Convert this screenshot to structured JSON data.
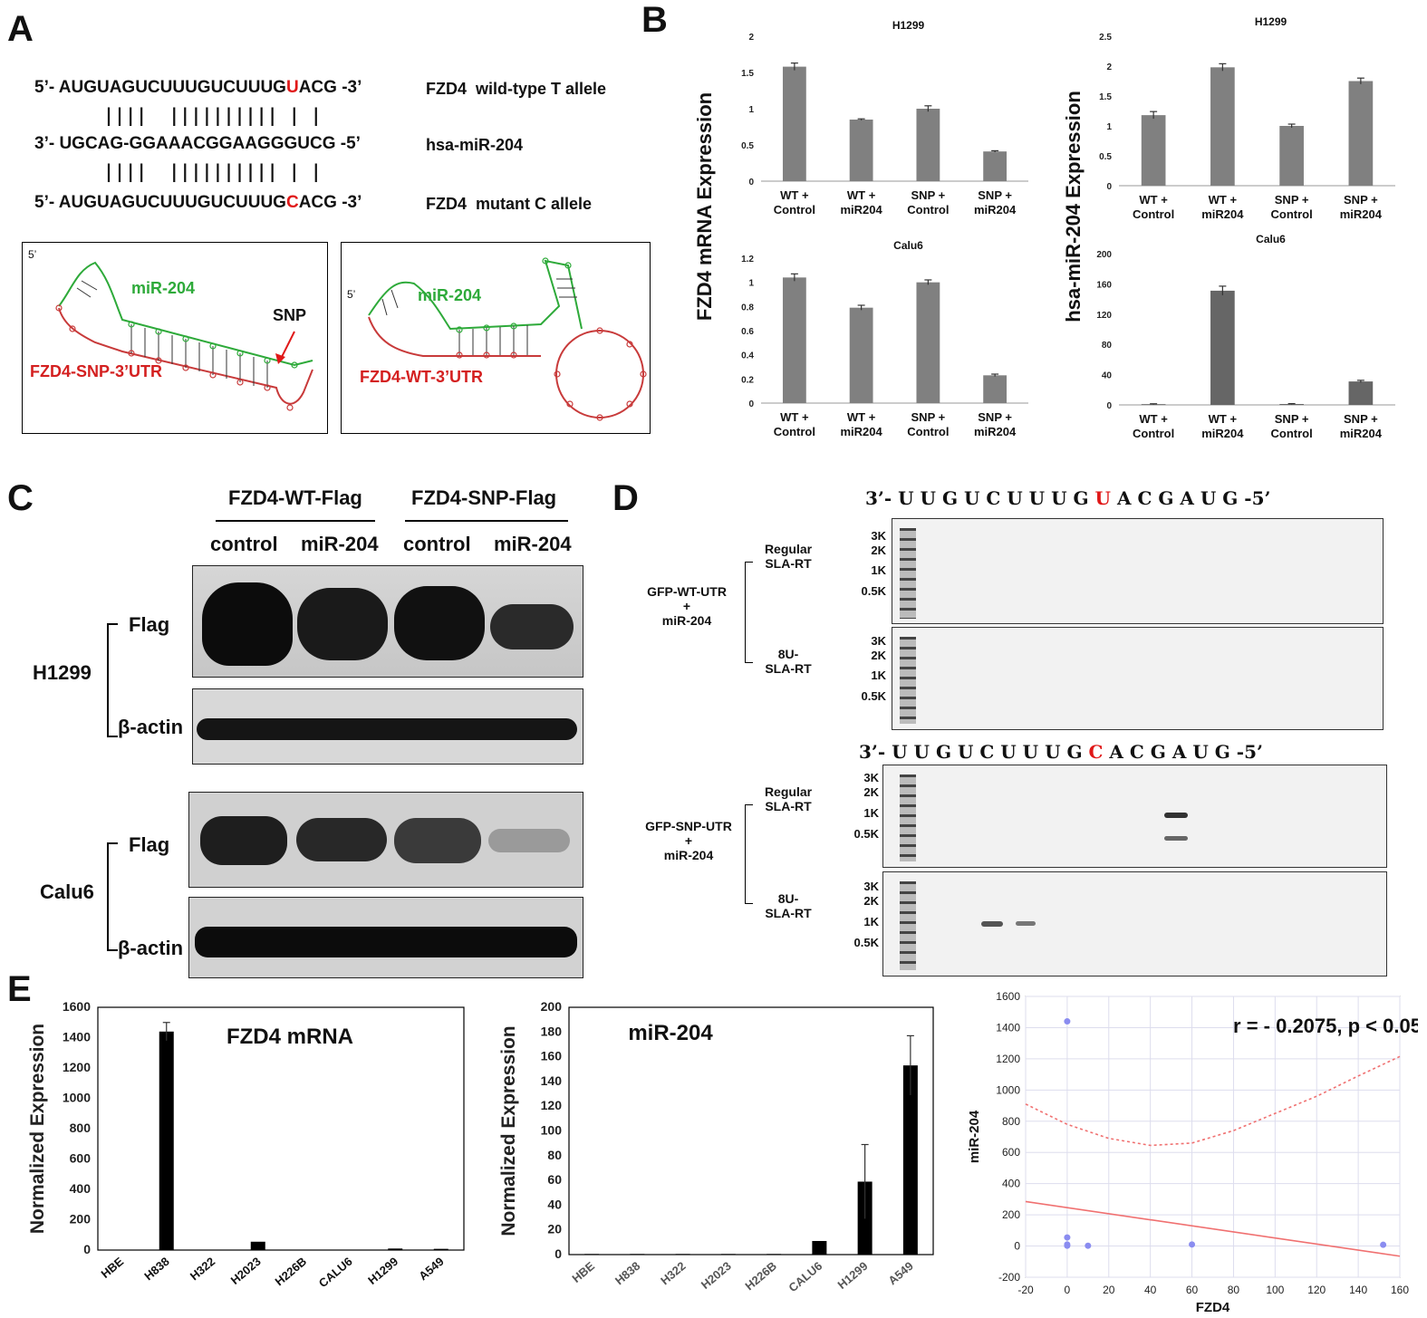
{
  "panels": {
    "a": "A",
    "b": "B",
    "c": "C",
    "d": "D",
    "e": "E"
  },
  "panel_a": {
    "row1": {
      "prefix": "5’- ",
      "seq_start": "AUGUAGUCUUUGUCUUUG",
      "snp": "U",
      "seq_end": "ACG",
      "suffix": " -3’",
      "label": "FZD4  wild-type T allele"
    },
    "pairs1": "||||  |||||||||| | |",
    "row2": {
      "seq": "3’- UGCAG-GGAAACGGAAGGGUCG -5’",
      "label": "hsa-miR-204"
    },
    "pairs2": "||||  |||||||||| | |",
    "row3": {
      "prefix": "5’- ",
      "seq_start": "AUGUAGUCUUUGUCUUUG",
      "snp": "C",
      "seq_end": "ACG",
      "suffix": " -3’",
      "label": "FZD4  mutant C allele"
    },
    "struct_left": {
      "five": "5’",
      "mir": "miR-204",
      "snp": "SNP",
      "utr": "FZD4-SNP-3’UTR"
    },
    "struct_right": {
      "five": "5’",
      "mir": "miR-204",
      "utr": "FZD4-WT-3’UTR"
    },
    "colors": {
      "mir": "#2eaa3a",
      "utr": "#d42020",
      "snp": "#e01818"
    }
  },
  "panel_b": {
    "ylabel_left": "FZD4 mRNA Expression",
    "ylabel_right": "hsa-miR-204 Expression"
  },
  "chart_data": [
    {
      "type": "bar",
      "title": "H1299",
      "categories": [
        "WT + Control",
        "WT + miR204",
        "SNP + Control",
        "SNP + miR204"
      ],
      "values": [
        1.58,
        0.85,
        1.0,
        0.41
      ],
      "errors": [
        0.05,
        0.01,
        0.04,
        0.01
      ],
      "ylim": [
        0,
        2
      ],
      "yticks": [
        0,
        0.5,
        1,
        1.5,
        2
      ],
      "ytick_labels": [
        "0",
        "0.5",
        "1",
        "1.5",
        "2"
      ],
      "ylabel": "FZD4 mRNA Expression",
      "color": "#808080"
    },
    {
      "type": "bar",
      "title": "H1299",
      "categories": [
        "WT + Control",
        "WT + miR204",
        "SNP + Control",
        "SNP + miR204"
      ],
      "values": [
        1.18,
        1.98,
        1.0,
        1.75
      ],
      "errors": [
        0.06,
        0.06,
        0.03,
        0.05
      ],
      "ylim": [
        0,
        2.5
      ],
      "yticks": [
        0,
        0.5,
        1,
        1.5,
        2,
        2.5
      ],
      "ytick_labels": [
        "0",
        "0.5",
        "1",
        "1.5",
        "2",
        "2.5"
      ],
      "ylabel": "hsa-miR-204 Expression",
      "color": "#808080"
    },
    {
      "type": "bar",
      "title": "Calu6",
      "categories": [
        "WT + Control",
        "WT + miR204",
        "SNP + Control",
        "SNP + miR204"
      ],
      "values": [
        1.04,
        0.79,
        1.0,
        0.23
      ],
      "errors": [
        0.03,
        0.02,
        0.02,
        0.01
      ],
      "ylim": [
        0,
        1.2
      ],
      "yticks": [
        0,
        0.2,
        0.4,
        0.6,
        0.8,
        1,
        1.2
      ],
      "ytick_labels": [
        "0",
        "0.2",
        "0.4",
        "0.6",
        "0.8",
        "1",
        "1.2"
      ],
      "ylabel": "FZD4 mRNA Expression",
      "color": "#808080"
    },
    {
      "type": "bar",
      "title": "Calu6",
      "categories": [
        "WT + Control",
        "WT + miR204",
        "SNP + Control",
        "SNP + miR204"
      ],
      "values": [
        1,
        151,
        1.2,
        31
      ],
      "errors": [
        0.5,
        6,
        0.5,
        1.5
      ],
      "ylim": [
        0,
        200
      ],
      "yticks": [
        0,
        40,
        80,
        120,
        160,
        200
      ],
      "ytick_labels": [
        "0",
        "40",
        "80",
        "120",
        "160",
        "200"
      ],
      "ylabel": "hsa-miR-204 Expression",
      "color": "#666666"
    },
    {
      "type": "bar",
      "title": "FZD4 mRNA",
      "categories": [
        "HBE",
        "H838",
        "H322",
        "H2023",
        "H226B",
        "CALU6",
        "H1299",
        "A549"
      ],
      "values": [
        2,
        1440,
        2,
        55,
        2,
        2,
        10,
        8
      ],
      "errors": [
        0,
        60,
        0,
        0,
        0,
        0,
        0,
        0
      ],
      "ylim": [
        0,
        1600
      ],
      "yticks": [
        0,
        200,
        400,
        600,
        800,
        1000,
        1200,
        1400,
        1600
      ],
      "ytick_labels": [
        "0",
        "200",
        "400",
        "600",
        "800",
        "1000",
        "1200",
        "1400",
        "1600"
      ],
      "ylabel": "Normalized  Expression",
      "color": "#000000"
    },
    {
      "type": "bar",
      "title": "miR-204",
      "categories": [
        "HBE",
        "H838",
        "H322",
        "H2023",
        "H226B",
        "CALU6",
        "H1299",
        "A549"
      ],
      "values": [
        0.5,
        0.5,
        0.5,
        0.5,
        0.5,
        11,
        59,
        153
      ],
      "errors": [
        0,
        0,
        0,
        0,
        0,
        0,
        30,
        24
      ],
      "ylim": [
        0,
        200
      ],
      "yticks": [
        0,
        20,
        40,
        60,
        80,
        100,
        120,
        140,
        160,
        180,
        200
      ],
      "ytick_labels": [
        "0",
        "20",
        "40",
        "60",
        "80",
        "100",
        "120",
        "140",
        "160",
        "180",
        "200"
      ],
      "ylabel": "Normalized Expression",
      "color": "#000000"
    },
    {
      "type": "scatter",
      "title": "",
      "annotation": "r = - 0.2075, p < 0.05",
      "x": [
        0,
        0,
        0,
        0,
        10,
        60,
        152
      ],
      "y": [
        1440,
        55,
        10,
        2,
        2,
        10,
        8
      ],
      "xlabel": "FZD4",
      "ylabel": "miR-204",
      "xlim": [
        -20,
        160
      ],
      "ylim": [
        -200,
        1600
      ],
      "xticks": [
        -20,
        0,
        20,
        40,
        60,
        80,
        100,
        120,
        140,
        160
      ],
      "yticks": [
        -200,
        0,
        200,
        400,
        600,
        800,
        1000,
        1200,
        1400,
        1600
      ],
      "fit_line": {
        "x": [
          -20,
          160
        ],
        "y": [
          285,
          -65
        ]
      },
      "ci_upper": {
        "x": [
          -20,
          0,
          20,
          40,
          60,
          80,
          100,
          120,
          140,
          160
        ],
        "y": [
          910,
          780,
          690,
          645,
          660,
          740,
          850,
          960,
          1090,
          1215
        ]
      },
      "point_color": "#8a8cf0",
      "line_color": "#f07070"
    }
  ],
  "panel_c": {
    "groups": [
      "FZD4-WT-Flag",
      "FZD4-SNP-Flag"
    ],
    "lanes": [
      "control",
      "miR-204",
      "control",
      "miR-204"
    ],
    "cells": [
      "H1299",
      "Calu6"
    ],
    "flag": "Flag",
    "actin": "β-actin"
  },
  "panel_d": {
    "seq_wt": {
      "start": "3’- U U G U C U U U G ",
      "snp": "U",
      "end": " A C G A U G -5’"
    },
    "seq_snp": {
      "start": "3’- U U G U C U U U G ",
      "snp": "C",
      "end": " A C G A U G -5’"
    },
    "construct_wt": "GFP-WT-UTR\n+\nmiR-204",
    "construct_snp": "GFP-SNP-UTR\n+\nmiR-204",
    "regular": "Regular\nSLA-RT",
    "eightu": "8U-\nSLA-RT",
    "ladder": [
      "3K",
      "2K",
      "1K",
      "0.5K"
    ]
  }
}
